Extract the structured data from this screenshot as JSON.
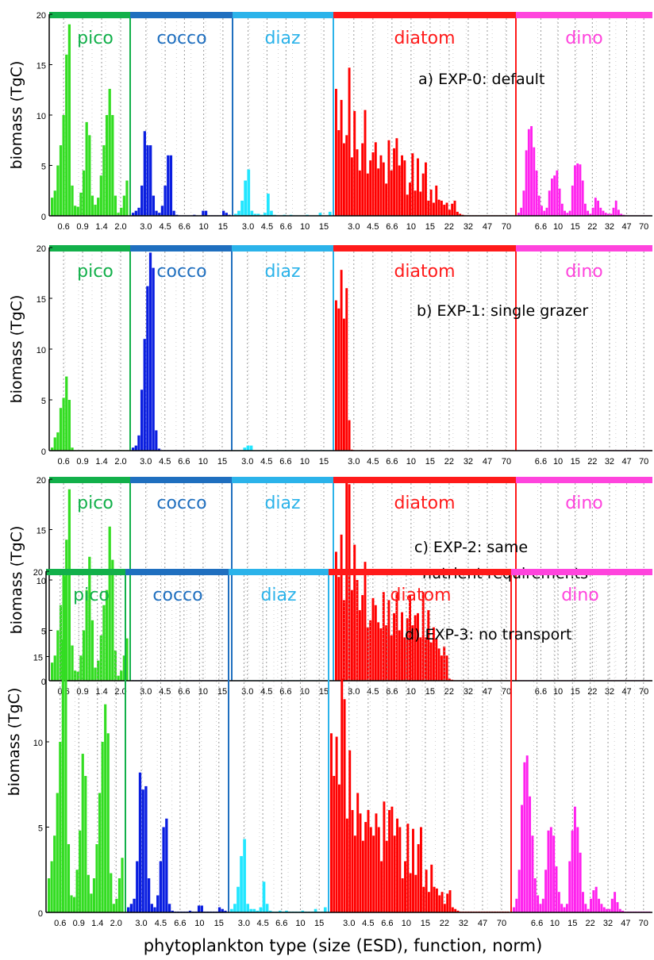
{
  "colors": {
    "pico_band": "#12b04a",
    "pico_bar": "#33dd22",
    "cocco_band": "#1f6fbf",
    "cocco_bar": "#0a1ee0",
    "diaz_band": "#2bb3ea",
    "diaz_bar": "#22e6ff",
    "diatom_band": "#ff1a1a",
    "diatom_bar": "#ff0000",
    "dino_band": "#ff44dd",
    "dino_bar": "#ff22ee"
  },
  "chart_data": {
    "type": "bar",
    "xlabel": "phytoplankton type (size (ESD), function, norm)",
    "ylabel": "biomass (TgC)",
    "ylim": [
      0,
      20
    ],
    "yticks": [
      0,
      5,
      10,
      15,
      20
    ],
    "grid": "vertical dotted lines",
    "groups": [
      {
        "name": "pico",
        "size_ticks": [
          "0.6",
          "0.9",
          "1.4",
          "2.0"
        ]
      },
      {
        "name": "cocco",
        "size_ticks": [
          "3.0",
          "4.5",
          "6.6",
          "10",
          "15"
        ]
      },
      {
        "name": "diaz",
        "size_ticks": [
          "3.0",
          "4.5",
          "6.6",
          "10",
          "15"
        ]
      },
      {
        "name": "diatom",
        "size_ticks": [
          "3.0",
          "4.5",
          "6.6",
          "10",
          "15",
          "22",
          "32",
          "47",
          "70"
        ]
      },
      {
        "name": "dino",
        "size_ticks": [
          "6.6",
          "10",
          "15",
          "22",
          "32",
          "47",
          "70"
        ]
      }
    ],
    "panels": [
      {
        "label": "a) EXP-0: default",
        "values": {
          "pico": [
            1.8,
            2.5,
            5,
            7,
            10,
            16,
            19,
            3,
            1,
            0.9,
            2.3,
            4.5,
            9.3,
            8,
            2,
            1.1,
            1.8,
            4,
            7,
            10,
            12.6,
            10,
            2,
            0.3,
            0.8,
            2,
            3.5
          ],
          "cocco": [
            0.3,
            0.5,
            0.8,
            3,
            8.4,
            7,
            7,
            2,
            0.5,
            0.3,
            1,
            3,
            6,
            6,
            0.5,
            0.1,
            0.05,
            0.05,
            0.05,
            0.05,
            0.05,
            0.1,
            0.05,
            0.05,
            0.5,
            0.5,
            0.05,
            0.05,
            0.05,
            0.05,
            0.05,
            0.5,
            0.3,
            0.1
          ],
          "diaz": [
            0.2,
            0.5,
            1.5,
            3.5,
            4.6,
            0.5,
            0.2,
            0.2,
            0.1,
            0.3,
            2.2,
            0.5,
            0.1,
            0.05,
            0.05,
            0.1,
            0.05,
            0.1,
            0.05,
            0.05,
            0.05,
            0.05,
            0.1,
            0.05,
            0.05,
            0.05,
            0.3,
            0.05,
            0.05,
            0.4
          ],
          "diatom": [
            12.6,
            8.5,
            11.5,
            7.2,
            8,
            14.7,
            5.8,
            10.4,
            6.6,
            4.5,
            7.2,
            10.5,
            4.2,
            5.5,
            6.3,
            7.3,
            4.7,
            6,
            5.3,
            3.2,
            7.5,
            4.5,
            6.7,
            7.7,
            5,
            6,
            5.5,
            2.1,
            3.3,
            6.2,
            2.5,
            5.7,
            2.4,
            4.2,
            5.3,
            1.5,
            2.6,
            1.3,
            3,
            1.6,
            1.5,
            1.1,
            1.3,
            0.6,
            1.2,
            1.5,
            0.4,
            0.2,
            0.1,
            0.05,
            0.05,
            0.05,
            0.05,
            0.05,
            0.05,
            0.05,
            0.05,
            0.05,
            0.05,
            0.05,
            0.05,
            0.05,
            0.05,
            0.05,
            0.05,
            0.05,
            0.05,
            0.05
          ],
          "dino": [
            0.3,
            0.8,
            2.5,
            6.5,
            8.6,
            8.9,
            6.8,
            4.5,
            2,
            1,
            0.5,
            0.8,
            2.5,
            3.7,
            4,
            4.5,
            2.7,
            1.2,
            0.5,
            0.3,
            0.5,
            3,
            5,
            5.2,
            5.1,
            3.5,
            1.2,
            0.5,
            0.2,
            0.8,
            1.8,
            1.5,
            0.8,
            0.5,
            0.3,
            0.2,
            0.2,
            0.8,
            1.5,
            0.6,
            0.2,
            0.1,
            0.05,
            0.05,
            0.05,
            0.05,
            0.05,
            0.05,
            0.05,
            0.05,
            0.05,
            0.05
          ]
        }
      },
      {
        "label": "b) EXP-1: single grazer",
        "values": {
          "pico": [
            0.3,
            1.3,
            1.8,
            4.2,
            5.2,
            7.3,
            5,
            0.3,
            0.05,
            0.05,
            0.05,
            0.05,
            0.05,
            0.05,
            0.05,
            0.05,
            0.05,
            0.05,
            0.05,
            0.05,
            0.05,
            0.05,
            0.05,
            0.05,
            0.05,
            0.05,
            0.05
          ],
          "cocco": [
            0.3,
            0.5,
            1.5,
            6,
            11,
            16.2,
            19.5,
            18,
            2,
            0.2,
            0.05,
            0.05,
            0.05,
            0.05,
            0.05,
            0.05,
            0.05,
            0.05,
            0.05,
            0.05,
            0.05,
            0.05,
            0.05,
            0.05,
            0.05,
            0.05,
            0.05,
            0.05,
            0.05,
            0.05,
            0.05,
            0.05,
            0.05,
            0.05
          ],
          "diaz": [
            0.05,
            0.05,
            0.05,
            0.3,
            0.5,
            0.5,
            0.05,
            0.05,
            0.05,
            0.05,
            0.05,
            0.05,
            0.05,
            0.05,
            0.05,
            0.05,
            0.05,
            0.05,
            0.05,
            0.05,
            0.05,
            0.05,
            0.05,
            0.05,
            0.05,
            0.05,
            0.05,
            0.05,
            0.05,
            0.05
          ],
          "diatom": [
            14.8,
            14,
            17.8,
            13,
            16,
            3,
            0.1,
            0.05,
            0.05,
            0.05,
            0.05,
            0.05,
            0.05,
            0.05,
            0.05,
            0.05,
            0.05,
            0.05,
            0.05,
            0.05,
            0.05,
            0.05,
            0.05,
            0.05,
            0.05,
            0.05,
            0.05,
            0.05,
            0.05,
            0.05,
            0.05,
            0.05,
            0.05,
            0.05,
            0.05,
            0.05,
            0.05,
            0.05,
            0.05,
            0.05,
            0.05,
            0.05,
            0.05,
            0.05,
            0.05,
            0.05,
            0.05,
            0.05,
            0.05,
            0.05,
            0.05,
            0.05,
            0.05,
            0.05,
            0.05,
            0.05,
            0.05,
            0.05,
            0.05,
            0.05,
            0.05,
            0.05,
            0.05,
            0.05,
            0.05,
            0.05,
            0.05,
            0.05
          ],
          "dino": [
            0.05,
            0.05,
            0.05,
            0.05,
            0.05,
            0.05,
            0.05,
            0.05,
            0.05,
            0.05,
            0.05,
            0.05,
            0.05,
            0.05,
            0.05,
            0.05,
            0.05,
            0.05,
            0.05,
            0.05,
            0.05,
            0.05,
            0.05,
            0.05,
            0.05,
            0.05,
            0.05,
            0.05,
            0.05,
            0.05,
            0.05,
            0.05,
            0.05,
            0.05,
            0.05,
            0.05,
            0.05,
            0.05,
            0.05,
            0.05,
            0.05,
            0.05,
            0.05,
            0.05,
            0.05,
            0.05,
            0.05,
            0.05,
            0.05,
            0.05,
            0.05,
            0.05
          ]
        }
      },
      {
        "label_lines": [
          "c) EXP-2: same",
          "nutrient requirements"
        ],
        "values": {
          "pico": [
            1.8,
            2.5,
            5,
            7.5,
            10.5,
            14,
            19,
            3.5,
            1,
            0.9,
            2.5,
            5,
            9,
            12.3,
            6,
            1.3,
            2,
            4.5,
            7.5,
            9,
            15.3,
            12,
            3,
            0.5,
            1,
            2.5,
            4.2
          ],
          "cocco": [
            0.05,
            0.05,
            0.05,
            0.05,
            0.05,
            0.05,
            0.05,
            0.05,
            0.05,
            0.05,
            0.05,
            0.05,
            0.05,
            0.05,
            0.05,
            0.05,
            0.05,
            0.05,
            0.05,
            0.05,
            0.05,
            0.05,
            0.05,
            0.05,
            0.05,
            0.05,
            0.05,
            0.05,
            0.05,
            0.05,
            0.05,
            0.05,
            0.05,
            0.05
          ],
          "diaz": [
            0.05,
            0.05,
            0.05,
            0.05,
            0.05,
            0.05,
            0.05,
            0.05,
            0.05,
            0.05,
            0.05,
            0.05,
            0.05,
            0.05,
            0.05,
            0.05,
            0.05,
            0.05,
            0.05,
            0.05,
            0.05,
            0.05,
            0.05,
            0.05,
            0.05,
            0.05,
            0.05,
            0.05,
            0.05,
            0.05
          ],
          "diatom": [
            12.8,
            10.3,
            14.5,
            8,
            20,
            19.5,
            9,
            13.5,
            10,
            7,
            8.5,
            11.8,
            5.3,
            6,
            8.2,
            7.5,
            5.8,
            5.2,
            8.8,
            5.5,
            8,
            4.5,
            6.7,
            8.7,
            5,
            6.8,
            4.3,
            6.2,
            8.5,
            5.5,
            6.5,
            6.7,
            4.3,
            8.8,
            4.3,
            7,
            3.8,
            5.3,
            4.2,
            3.2,
            2.5,
            3.4,
            2.5,
            0.2,
            0.1,
            0.05,
            0.05,
            0.05,
            0.05,
            0.05,
            0.05,
            0.05,
            0.05,
            0.05,
            0.05,
            0.05,
            0.05,
            0.05,
            0.05,
            0.05,
            0.05,
            0.05,
            0.05,
            0.05,
            0.05,
            0.05,
            0.05,
            0.05
          ],
          "dino": [
            0.05,
            0.05,
            0.05,
            0.05,
            0.05,
            0.05,
            0.05,
            0.05,
            0.05,
            0.05,
            0.05,
            0.05,
            0.05,
            0.05,
            0.05,
            0.05,
            0.05,
            0.05,
            0.05,
            0.05,
            0.05,
            0.05,
            0.05,
            0.05,
            0.05,
            0.05,
            0.05,
            0.05,
            0.05,
            0.05,
            0.05,
            0.05,
            0.05,
            0.05,
            0.05,
            0.05,
            0.05,
            0.05,
            0.05,
            0.05,
            0.05,
            0.05,
            0.05,
            0.05,
            0.05,
            0.05,
            0.05,
            0.05,
            0.05,
            0.05,
            0.05,
            0.05
          ]
        }
      },
      {
        "label": "d) EXP-3: no transport",
        "values": {
          "pico": [
            2,
            3,
            4.5,
            7,
            10,
            16,
            19.7,
            4,
            1,
            0.9,
            2.5,
            4.8,
            9.3,
            8,
            2.2,
            1.1,
            2,
            4,
            7,
            10,
            12.2,
            10.5,
            2.3,
            0.5,
            0.8,
            2,
            3.2
          ],
          "cocco": [
            0.3,
            0.5,
            0.8,
            3,
            8.2,
            7.2,
            7.4,
            2,
            0.5,
            0.3,
            1,
            3,
            5,
            5.5,
            0.5,
            0.1,
            0.05,
            0.05,
            0.05,
            0.05,
            0.05,
            0.1,
            0.05,
            0.05,
            0.4,
            0.4,
            0.05,
            0.05,
            0.05,
            0.05,
            0.05,
            0.3,
            0.2,
            0.1
          ],
          "diaz": [
            0.2,
            0.5,
            1.5,
            3.3,
            4.3,
            0.5,
            0.2,
            0.2,
            0.1,
            0.3,
            1.8,
            0.5,
            0.1,
            0.05,
            0.05,
            0.1,
            0.05,
            0.1,
            0.05,
            0.05,
            0.05,
            0.05,
            0.1,
            0.05,
            0.05,
            0.05,
            0.2,
            0.05,
            0.05,
            0.3
          ],
          "diatom": [
            10.5,
            8,
            10.3,
            7.5,
            13.7,
            12.5,
            5.5,
            9.5,
            6,
            4.5,
            7,
            5.8,
            4.2,
            5.3,
            6,
            5,
            4.5,
            5.8,
            5,
            3,
            6.5,
            4.2,
            6,
            6.2,
            4.5,
            5.5,
            5,
            2,
            3,
            5.2,
            2.3,
            4.9,
            2.2,
            4,
            5,
            1.5,
            2.5,
            1.2,
            2.8,
            1.5,
            1.4,
            1,
            1.2,
            0.5,
            1.1,
            1.3,
            0.3,
            0.2,
            0.1,
            0.05,
            0.05,
            0.05,
            0.05,
            0.05,
            0.05,
            0.05,
            0.05,
            0.05,
            0.05,
            0.05,
            0.05,
            0.05,
            0.05,
            0.05,
            0.05,
            0.05,
            0.05,
            0.05
          ],
          "dino": [
            0.3,
            0.8,
            2.5,
            6.3,
            8.8,
            9.2,
            6.8,
            4.5,
            2,
            1,
            0.5,
            0.8,
            2.5,
            4.8,
            5,
            4.5,
            2.7,
            1.2,
            0.5,
            0.3,
            0.5,
            3,
            4.8,
            6.2,
            5,
            3.5,
            1.2,
            0.5,
            0.2,
            0.8,
            1.3,
            1.5,
            0.8,
            0.5,
            0.3,
            0.2,
            0.2,
            0.8,
            1.2,
            0.6,
            0.2,
            0.1,
            0.05,
            0.05,
            0.05,
            0.05,
            0.05,
            0.05,
            0.05,
            0.05,
            0.05,
            0.05
          ]
        }
      }
    ]
  }
}
